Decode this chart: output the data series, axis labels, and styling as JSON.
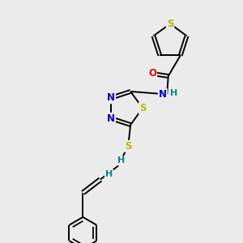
{
  "bg_color": "#ebebeb",
  "bond_color": "#000000",
  "S_color": "#b8b800",
  "N_color": "#0000cc",
  "O_color": "#dd0000",
  "H_color": "#008888",
  "font_size": 8.5,
  "line_width": 1.4,
  "figsize": [
    3.0,
    3.0
  ],
  "dpi": 100,
  "xlim": [
    0,
    10
  ],
  "ylim": [
    0,
    10
  ]
}
